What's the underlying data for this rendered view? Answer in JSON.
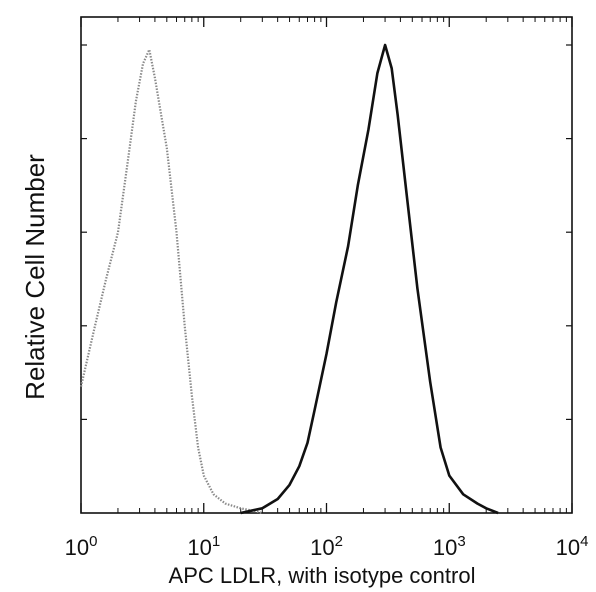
{
  "chart_data": {
    "type": "line",
    "title": "",
    "xlabel": "APC LDLR, with isotype control",
    "ylabel": "Relative Cell Number",
    "x_scale": "log",
    "xlim": [
      1,
      10000
    ],
    "ylim": [
      0,
      1
    ],
    "x_ticks": [
      {
        "value": 1,
        "base": "10",
        "exp": "0"
      },
      {
        "value": 10,
        "base": "10",
        "exp": "1"
      },
      {
        "value": 100,
        "base": "10",
        "exp": "2"
      },
      {
        "value": 1000,
        "base": "10",
        "exp": "3"
      },
      {
        "value": 10000,
        "base": "10",
        "exp": "4"
      }
    ],
    "grid": false,
    "series": [
      {
        "color": "#8a8a8a",
        "style": "dotted",
        "x": [
          1.0,
          1.3,
          1.6,
          2.0,
          2.4,
          2.8,
          3.2,
          3.6,
          4.0,
          4.5,
          5.0,
          6.0,
          7.0,
          8.0,
          9.0,
          10.0,
          12.0,
          15.0,
          20.0,
          25.0,
          30.0
        ],
        "y": [
          0.27,
          0.4,
          0.5,
          0.6,
          0.75,
          0.88,
          0.96,
          0.99,
          0.93,
          0.85,
          0.78,
          0.6,
          0.4,
          0.25,
          0.14,
          0.08,
          0.04,
          0.02,
          0.01,
          0.005,
          0.0
        ]
      },
      {
        "color": "#111111",
        "style": "solid",
        "x": [
          20,
          30,
          40,
          50,
          60,
          70,
          80,
          100,
          120,
          150,
          180,
          220,
          260,
          300,
          340,
          380,
          450,
          550,
          700,
          850,
          1000,
          1300,
          1700,
          2000,
          2500
        ],
        "y": [
          0.0,
          0.01,
          0.03,
          0.06,
          0.1,
          0.15,
          0.22,
          0.34,
          0.45,
          0.57,
          0.7,
          0.82,
          0.94,
          1.0,
          0.95,
          0.85,
          0.68,
          0.48,
          0.28,
          0.14,
          0.08,
          0.04,
          0.02,
          0.01,
          0.0
        ]
      }
    ]
  }
}
